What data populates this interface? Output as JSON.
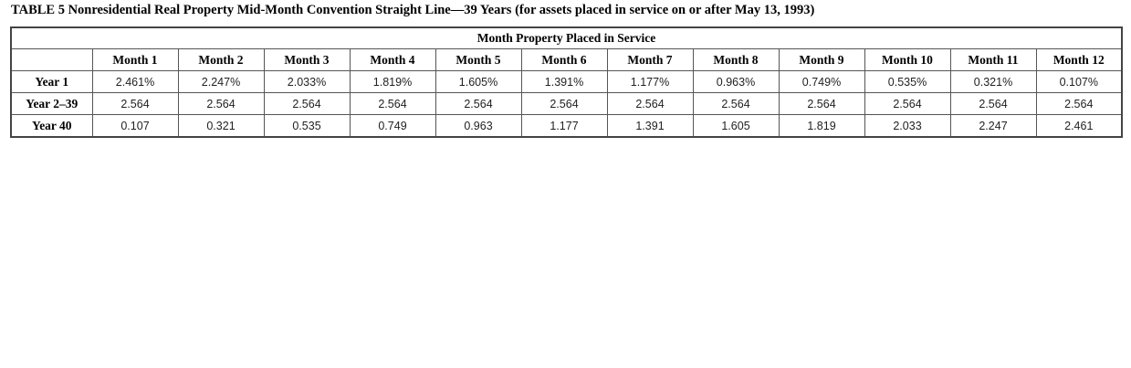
{
  "title": "TABLE 5 Nonresidential Real Property Mid-Month Convention Straight Line—39 Years (for assets placed in service on or after May 13, 1993)",
  "table": {
    "super_header": "Month Property Placed in Service",
    "columns": [
      "Month 1",
      "Month 2",
      "Month 3",
      "Month 4",
      "Month 5",
      "Month 6",
      "Month 7",
      "Month 8",
      "Month 9",
      "Month 10",
      "Month 11",
      "Month 12"
    ],
    "rows": [
      {
        "label": "Year 1",
        "values": [
          "2.461%",
          "2.247%",
          "2.033%",
          "1.819%",
          "1.605%",
          "1.391%",
          "1.177%",
          "0.963%",
          "0.749%",
          "0.535%",
          "0.321%",
          "0.107%"
        ]
      },
      {
        "label": "Year 2–39",
        "values": [
          "2.564",
          "2.564",
          "2.564",
          "2.564",
          "2.564",
          "2.564",
          "2.564",
          "2.564",
          "2.564",
          "2.564",
          "2.564",
          "2.564"
        ]
      },
      {
        "label": "Year 40",
        "values": [
          "0.107",
          "0.321",
          "0.535",
          "0.749",
          "0.963",
          "1.177",
          "1.391",
          "1.605",
          "1.819",
          "2.033",
          "2.247",
          "2.461"
        ]
      }
    ]
  }
}
